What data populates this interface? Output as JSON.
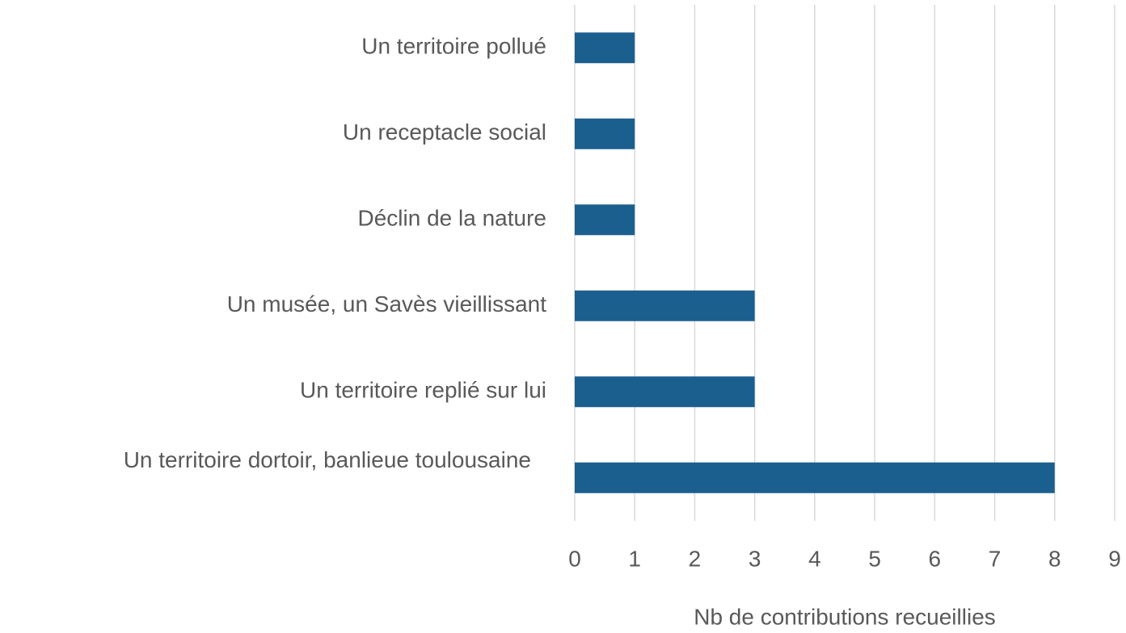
{
  "chart_data": {
    "type": "bar",
    "orientation": "horizontal",
    "x_label": "Nb de contributions recueillies",
    "categories": [
      "Un territoire pollué",
      "Un receptacle social",
      "Déclin de la nature",
      "Un musée, un Savès vieillissant",
      "Un territoire replié sur lui",
      "Un territoire dortoir, banlieue toulousaine"
    ],
    "values": [
      1,
      1,
      1,
      3,
      3,
      8
    ],
    "color": "#1b5f8f",
    "xlim": [
      0,
      9
    ],
    "xticks": [
      0,
      1,
      2,
      3,
      4,
      5,
      6,
      7,
      8,
      9
    ],
    "grid": true
  }
}
